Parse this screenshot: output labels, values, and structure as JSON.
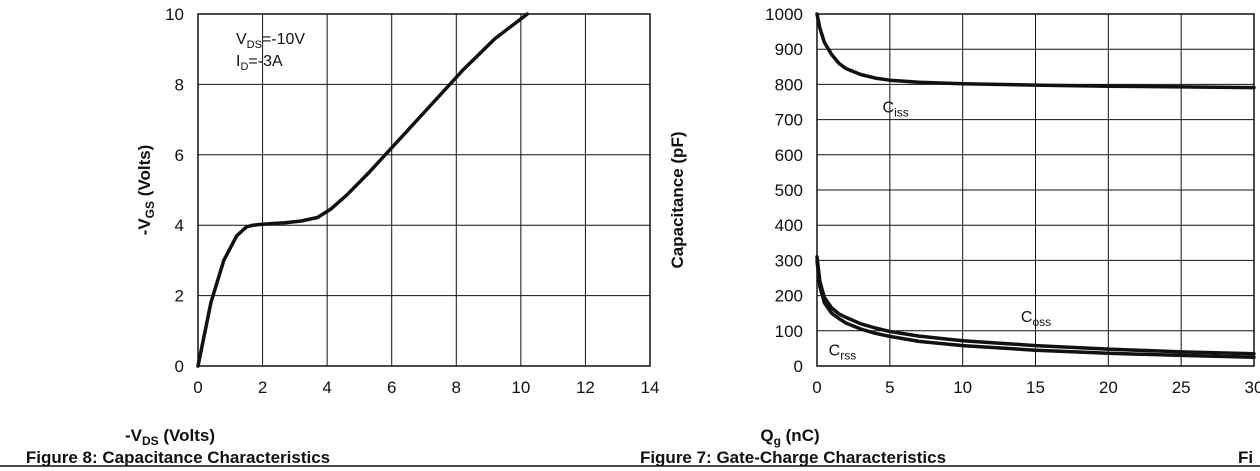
{
  "chart_data": [
    {
      "type": "line",
      "title": "Figure 7: Gate-Charge Characteristics",
      "xlabel": "Q",
      "xlabel_sub": "g",
      "xlabel_unit": " (nC)",
      "ylabel": "-V",
      "ylabel_sub": "GS",
      "ylabel_unit": " (Volts)",
      "xlim": [
        0,
        14
      ],
      "ylim": [
        0,
        10
      ],
      "xticks": [
        "0",
        "2",
        "4",
        "6",
        "8",
        "10",
        "12",
        "14"
      ],
      "yticks": [
        "0",
        "2",
        "4",
        "6",
        "8",
        "10"
      ],
      "annotation_1": {
        "main": "V",
        "sub": "DS",
        "rest": "=-10V"
      },
      "annotation_2": {
        "main": "I",
        "sub": "D",
        "rest": "=-3A"
      },
      "grid": true,
      "series": [
        {
          "x": [
            0,
            0.4,
            0.8,
            1.2,
            1.5,
            1.7,
            1.9,
            2.2,
            2.7,
            3.2,
            3.7,
            4.1,
            4.6,
            5.3,
            6.2,
            7.2,
            8.2,
            9.2,
            10.2
          ],
          "y": [
            0,
            1.8,
            3.0,
            3.7,
            3.95,
            4.0,
            4.02,
            4.04,
            4.07,
            4.12,
            4.22,
            4.45,
            4.85,
            5.5,
            6.4,
            7.4,
            8.4,
            9.3,
            10.0
          ]
        }
      ]
    },
    {
      "type": "line",
      "title": "Figure 8: Capacitance Characteristics",
      "xlabel": "-V",
      "xlabel_sub": "DS",
      "xlabel_unit": " (Volts)",
      "ylabel": "Capacitance (pF)",
      "xlim": [
        0,
        30
      ],
      "ylim": [
        0,
        1000
      ],
      "xticks": [
        "0",
        "5",
        "10",
        "15",
        "20",
        "25",
        "30"
      ],
      "yticks": [
        "0",
        "100",
        "200",
        "300",
        "400",
        "500",
        "600",
        "700",
        "800",
        "900",
        "1000"
      ],
      "grid": true,
      "series": [
        {
          "name": "C",
          "name_sub": "iss",
          "x": [
            0,
            0.2,
            0.5,
            1,
            1.5,
            2,
            3,
            4,
            5,
            7,
            10,
            15,
            20,
            25,
            30
          ],
          "y": [
            1000,
            960,
            920,
            885,
            860,
            845,
            828,
            818,
            812,
            806,
            802,
            798,
            795,
            793,
            791
          ]
        },
        {
          "name": "C",
          "name_sub": "oss",
          "x": [
            0,
            0.2,
            0.5,
            1,
            1.5,
            2,
            3,
            4,
            5,
            7,
            10,
            15,
            20,
            25,
            30
          ],
          "y": [
            310,
            240,
            195,
            165,
            148,
            138,
            120,
            108,
            98,
            85,
            72,
            58,
            48,
            40,
            35
          ]
        },
        {
          "name": "C",
          "name_sub": "rss",
          "x": [
            0,
            0.2,
            0.5,
            1,
            1.5,
            2,
            3,
            4,
            5,
            7,
            10,
            15,
            20,
            25,
            30
          ],
          "y": [
            300,
            225,
            180,
            150,
            135,
            122,
            105,
            93,
            84,
            70,
            58,
            45,
            36,
            30,
            25
          ]
        }
      ]
    }
  ],
  "fig9_caption": "Fi"
}
